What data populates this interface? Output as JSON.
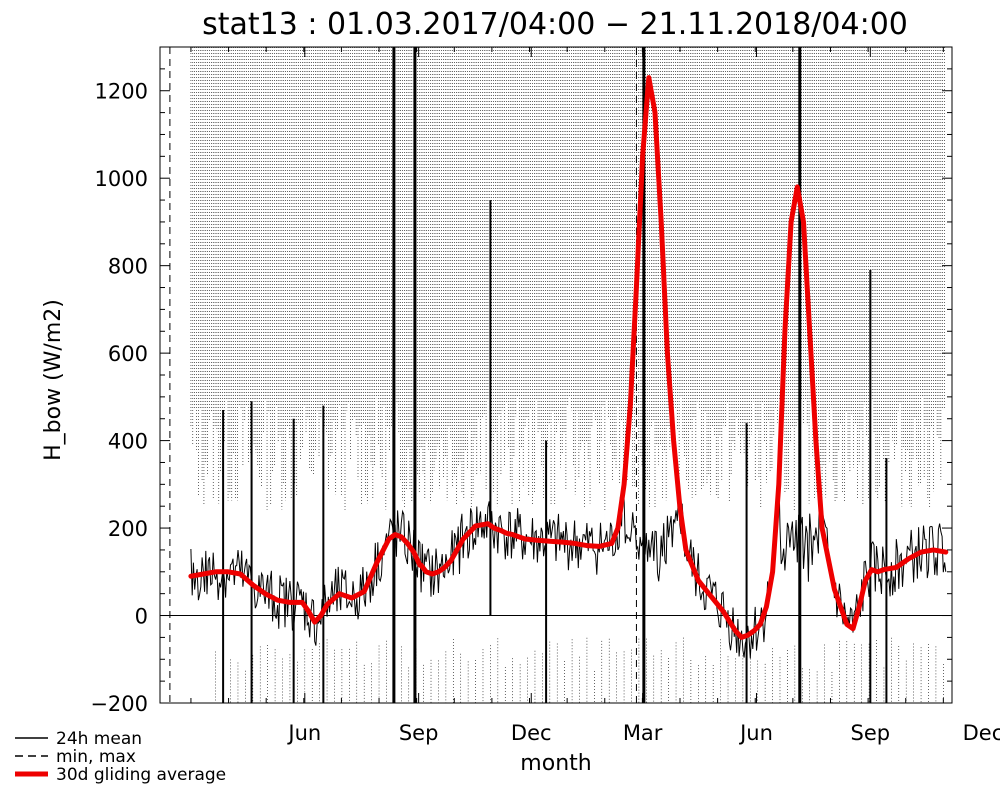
{
  "chart_data": {
    "type": "line",
    "title": "stat13 : 01.03.2017/04:00 − 21.11.2018/04:00",
    "xlabel": "month",
    "ylabel": "H_bow (W/m2)",
    "ylim": [
      -200,
      1300
    ],
    "xlim_days": [
      -25,
      615
    ],
    "yticks": [
      -200,
      0,
      200,
      400,
      600,
      800,
      1000,
      1200
    ],
    "xticks": [
      {
        "label": "Jun",
        "day": 92
      },
      {
        "label": "Sep",
        "day": 184
      },
      {
        "label": "Dec",
        "day": 275
      },
      {
        "label": "Mar",
        "day": 365
      },
      {
        "label": "Jun",
        "day": 457
      },
      {
        "label": "Sep",
        "day": 549
      },
      {
        "label": "Dec",
        "day": 640
      }
    ],
    "legend": [
      {
        "label": "24h mean",
        "style": "solid"
      },
      {
        "label": "min, max",
        "style": "dashed"
      },
      {
        "label": "30d gliding average",
        "style": "thick-red"
      }
    ],
    "colors": {
      "mean": "#000000",
      "minmax": "#000000",
      "average": "#ee0000"
    },
    "series": [
      {
        "name": "30d gliding average",
        "x_days": [
          0,
          10,
          20,
          30,
          40,
          50,
          60,
          70,
          80,
          90,
          95,
          100,
          105,
          110,
          120,
          130,
          140,
          150,
          160,
          165,
          170,
          175,
          180,
          185
        ],
        "values": [
          90,
          95,
          100,
          100,
          95,
          70,
          50,
          35,
          30,
          30,
          10,
          -15,
          0,
          25,
          50,
          40,
          55,
          120,
          175,
          185,
          180,
          165,
          145,
          115
        ]
      },
      {
        "name": "30d gliding average (2)",
        "x_days": [
          186,
          190,
          195,
          200,
          205,
          210,
          220,
          230,
          240,
          245,
          250,
          255,
          260,
          265,
          270,
          280,
          290,
          300,
          310,
          320,
          330,
          340,
          345,
          350,
          355,
          360,
          365,
          370,
          375,
          380,
          385,
          390,
          395,
          400,
          410,
          420,
          430,
          440,
          445,
          450,
          455,
          460,
          465,
          470,
          475,
          480,
          485,
          490,
          495,
          500,
          505,
          510,
          520,
          530,
          535,
          540,
          545,
          550,
          555,
          560,
          570,
          580,
          590,
          600,
          610
        ],
        "values": [
          115,
          100,
          95,
          100,
          110,
          125,
          175,
          205,
          210,
          200,
          195,
          188,
          185,
          180,
          175,
          172,
          170,
          168,
          165,
          160,
          158,
          165,
          200,
          300,
          480,
          750,
          1050,
          1230,
          1150,
          900,
          600,
          400,
          250,
          150,
          80,
          45,
          10,
          -35,
          -50,
          -45,
          -35,
          -20,
          20,
          100,
          300,
          650,
          900,
          980,
          900,
          650,
          400,
          200,
          60,
          -20,
          -30,
          20,
          80,
          105,
          100,
          105,
          110,
          130,
          145,
          150,
          145
        ]
      }
    ],
    "mean_spikes": [
      {
        "day": 26,
        "values": [
          -200,
          470
        ]
      },
      {
        "day": 49,
        "values": [
          -200,
          490
        ]
      },
      {
        "day": 83,
        "values": [
          -200,
          450
        ]
      },
      {
        "day": 107,
        "values": [
          -200,
          480
        ]
      },
      {
        "day": 164,
        "values": [
          -200,
          1300
        ]
      },
      {
        "day": 181,
        "values": [
          -200,
          1300
        ]
      },
      {
        "day": 242,
        "values": [
          0,
          950
        ]
      },
      {
        "day": 287,
        "values": [
          -200,
          400
        ]
      },
      {
        "day": 366,
        "values": [
          -200,
          1300
        ]
      },
      {
        "day": 449,
        "values": [
          -200,
          440
        ]
      },
      {
        "day": 492,
        "values": [
          -200,
          1300
        ]
      },
      {
        "day": 549,
        "values": [
          -200,
          790
        ]
      },
      {
        "day": 562,
        "values": [
          -200,
          360
        ]
      }
    ]
  }
}
